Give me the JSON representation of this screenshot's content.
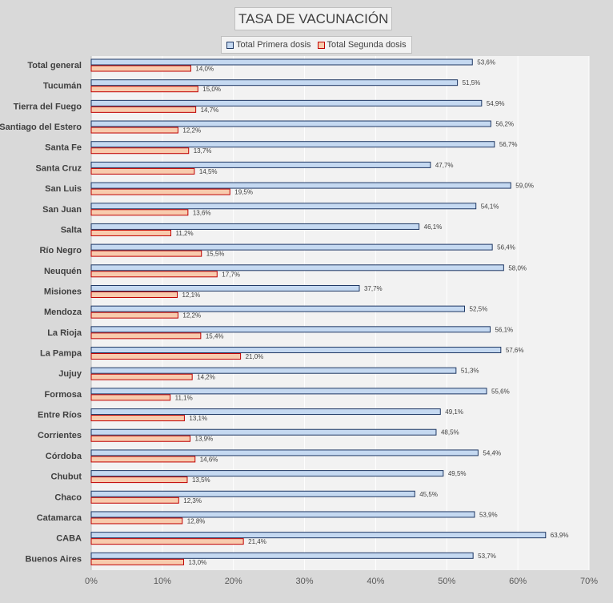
{
  "chart_data": {
    "type": "bar",
    "orientation": "horizontal",
    "title": "TASA DE VACUNACIÓN",
    "categories": [
      "Total general",
      "Tucumán",
      "Tierra del Fuego",
      "Santiago del Estero",
      "Santa Fe",
      "Santa Cruz",
      "San Luis",
      "San Juan",
      "Salta",
      "Río Negro",
      "Neuquén",
      "Misiones",
      "Mendoza",
      "La Rioja",
      "La Pampa",
      "Jujuy",
      "Formosa",
      "Entre Ríos",
      "Corrientes",
      "Córdoba",
      "Chubut",
      "Chaco",
      "Catamarca",
      "CABA",
      "Buenos Aires"
    ],
    "series": [
      {
        "name": "Total Primera dosis",
        "color": "#c5d9f1",
        "border": "#1f3864",
        "values": [
          53.6,
          51.5,
          54.9,
          56.2,
          56.7,
          47.7,
          59.0,
          54.1,
          46.1,
          56.4,
          58.0,
          37.7,
          52.5,
          56.1,
          57.6,
          51.3,
          55.6,
          49.1,
          48.5,
          54.4,
          49.5,
          45.5,
          53.9,
          63.9,
          53.7
        ],
        "labels": [
          "53,6%",
          "51,5%",
          "54,9%",
          "56,2%",
          "56,7%",
          "47,7%",
          "59,0%",
          "54,1%",
          "46,1%",
          "56,4%",
          "58,0%",
          "37,7%",
          "52,5%",
          "56,1%",
          "57,6%",
          "51,3%",
          "55,6%",
          "49,1%",
          "48,5%",
          "54,4%",
          "49,5%",
          "45,5%",
          "53,9%",
          "63,9%",
          "53,7%"
        ]
      },
      {
        "name": "Total Segunda dosis",
        "color": "#f8cbad",
        "border": "#c00000",
        "values": [
          14.0,
          15.0,
          14.7,
          12.2,
          13.7,
          14.5,
          19.5,
          13.6,
          11.2,
          15.5,
          17.7,
          12.1,
          12.2,
          15.4,
          21.0,
          14.2,
          11.1,
          13.1,
          13.9,
          14.6,
          13.5,
          12.3,
          12.8,
          21.4,
          13.0
        ],
        "labels": [
          "14,0%",
          "15,0%",
          "14,7%",
          "12,2%",
          "13,7%",
          "14,5%",
          "19,5%",
          "13,6%",
          "11,2%",
          "15,5%",
          "17,7%",
          "12,1%",
          "12,2%",
          "15,4%",
          "21,0%",
          "14,2%",
          "11,1%",
          "13,1%",
          "13,9%",
          "14,6%",
          "13,5%",
          "12,3%",
          "12,8%",
          "21,4%",
          "13,0%"
        ]
      }
    ],
    "xlim": [
      0,
      70
    ],
    "xticks": [
      0,
      10,
      20,
      30,
      40,
      50,
      60,
      70
    ],
    "xtick_labels": [
      "0%",
      "10%",
      "20%",
      "30%",
      "40%",
      "50%",
      "60%",
      "70%"
    ],
    "grid": true,
    "legend_position": "top"
  }
}
